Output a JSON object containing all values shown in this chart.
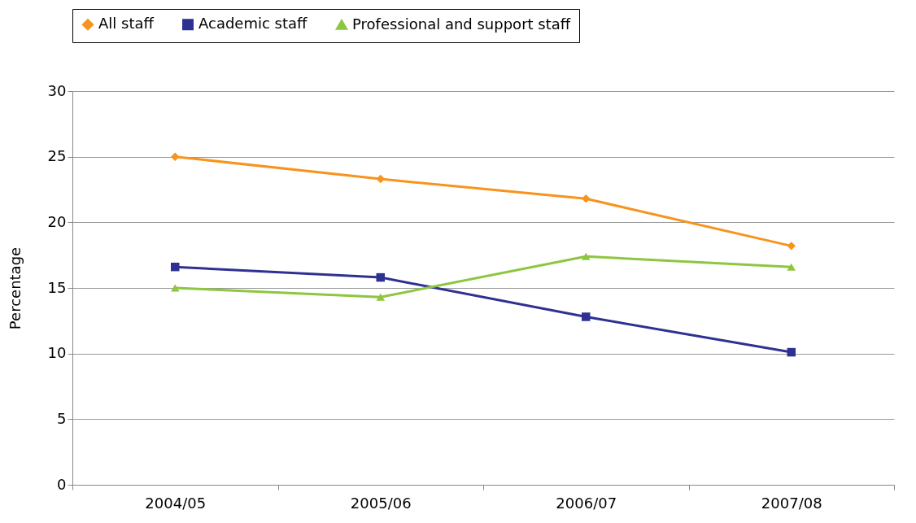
{
  "chart_data": {
    "type": "line",
    "ylabel": "Percentage",
    "categories": [
      "2004/05",
      "2005/06",
      "2006/07",
      "2007/08"
    ],
    "series": [
      {
        "name": "All staff",
        "color": "#f7941d",
        "marker": "diamond",
        "values": [
          25.0,
          23.3,
          21.8,
          18.2
        ]
      },
      {
        "name": "Academic staff",
        "color": "#2e3192",
        "marker": "square",
        "values": [
          16.6,
          15.8,
          12.8,
          10.1
        ]
      },
      {
        "name": "Professional and support staff",
        "color": "#8dc63f",
        "marker": "triangle",
        "values": [
          15.0,
          14.3,
          17.4,
          16.6
        ]
      }
    ],
    "ylim": [
      0,
      30
    ],
    "yticks": [
      0,
      5,
      10,
      15,
      20,
      25,
      30
    ],
    "grid": "y",
    "legend": "top",
    "line_style": "solid"
  }
}
